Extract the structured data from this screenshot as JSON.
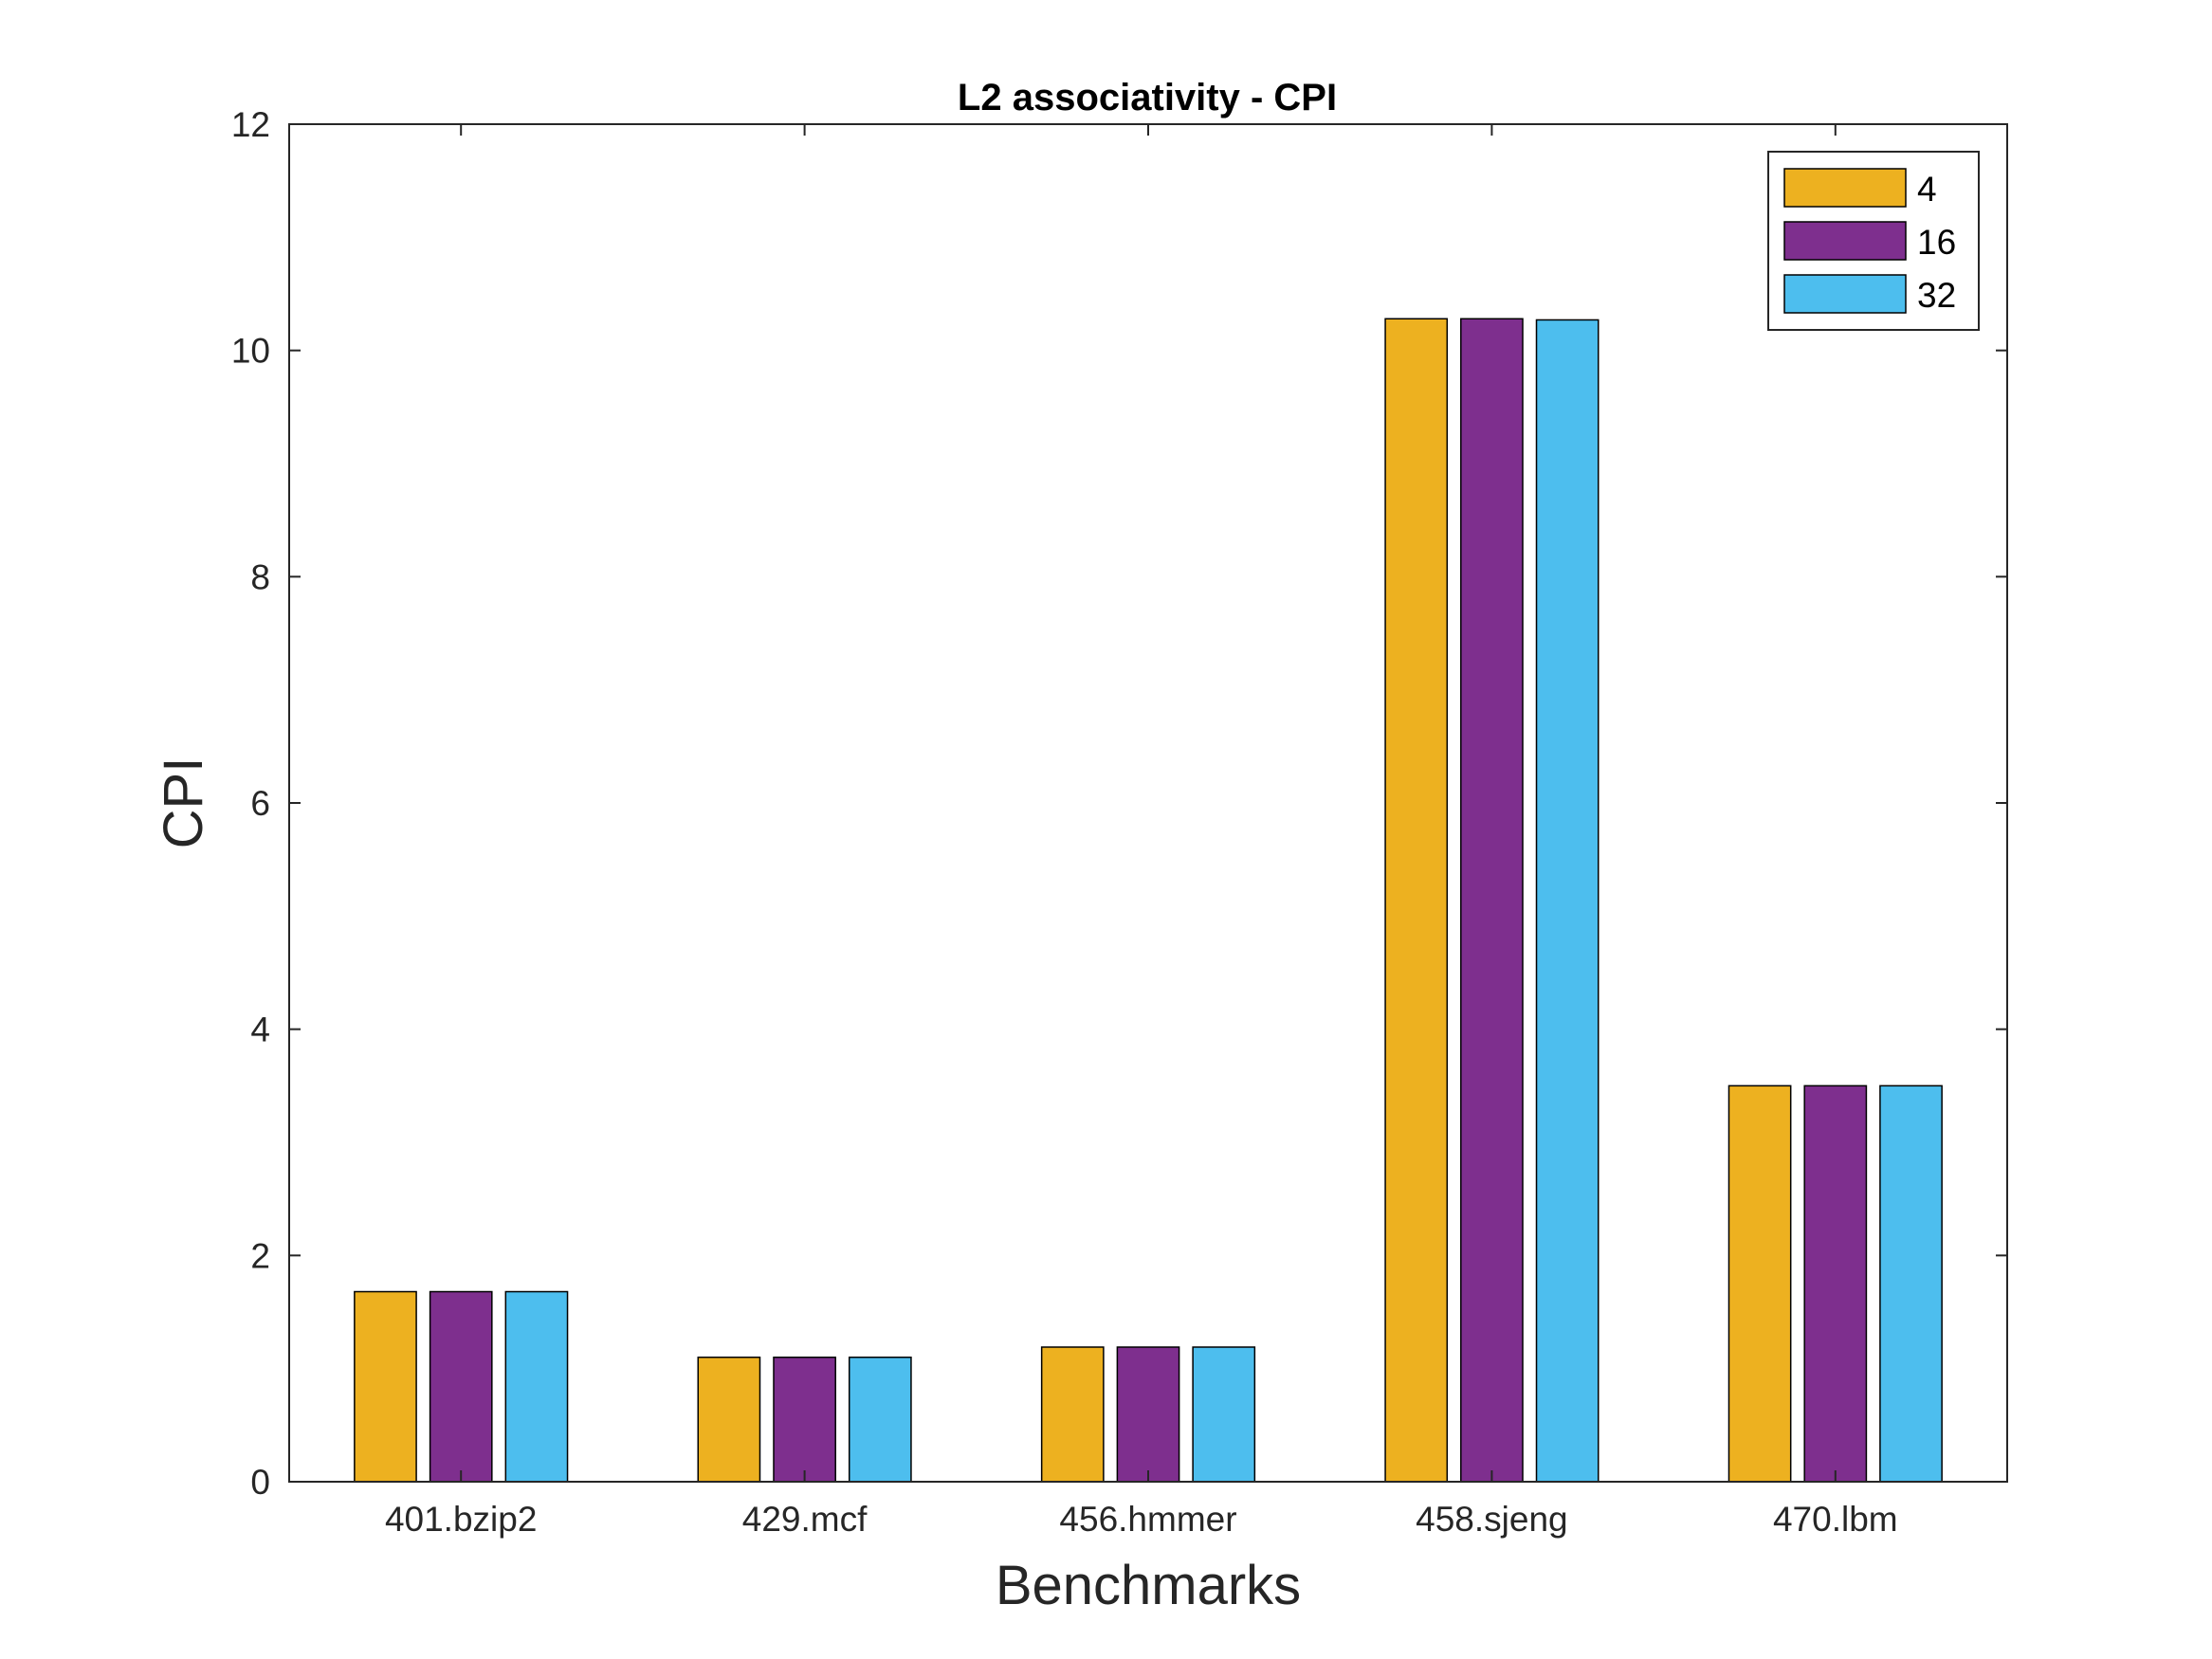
{
  "chart_data": {
    "type": "bar",
    "title": "L2 associativity - CPI",
    "xlabel": "Benchmarks",
    "ylabel": "CPI",
    "categories": [
      "401.bzip2",
      "429.mcf",
      "456.hmmer",
      "458.sjeng",
      "470.lbm"
    ],
    "series": [
      {
        "name": "4",
        "color": "#EDB120",
        "values": [
          1.68,
          1.1,
          1.19,
          10.28,
          3.5
        ]
      },
      {
        "name": "16",
        "color": "#7E2F8E",
        "values": [
          1.68,
          1.1,
          1.19,
          10.28,
          3.5
        ]
      },
      {
        "name": "32",
        "color": "#4DBEEE",
        "values": [
          1.68,
          1.1,
          1.19,
          10.27,
          3.5
        ]
      }
    ],
    "ylim": [
      0,
      12
    ],
    "yticks": [
      0,
      2,
      4,
      6,
      8,
      10,
      12
    ],
    "grid": false,
    "legend": "top-right"
  }
}
